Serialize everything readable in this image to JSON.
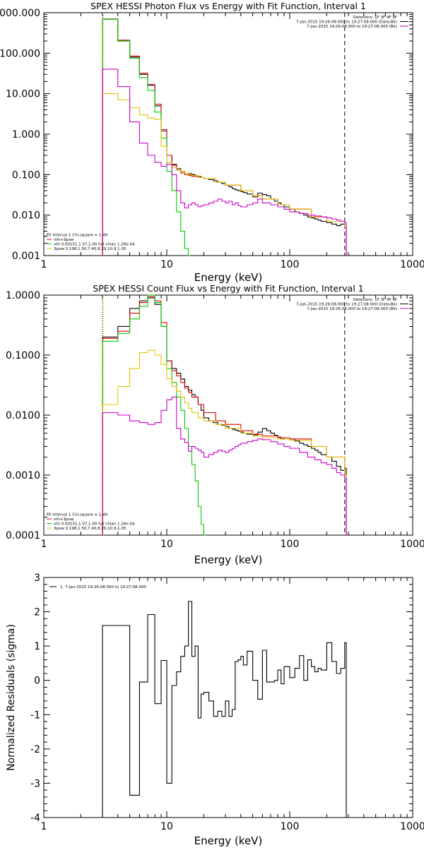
{
  "chart_data": [
    {
      "type": "line",
      "title": "SPEX HESSI Photon Flux vs Energy with Fit Function, Interval 1",
      "xlabel": "Energy (keV)",
      "ylabel": "",
      "xscale": "log",
      "yscale": "log",
      "xlim": [
        1,
        1000
      ],
      "ylim": [
        0.001,
        1000
      ],
      "xticks": [
        1,
        10,
        100,
        1000
      ],
      "xticklabels": [
        "1",
        "10",
        "100",
        "1000"
      ],
      "yticks": [
        0.001,
        0.01,
        0.1,
        1,
        10,
        100,
        1000
      ],
      "yticklabels": [
        "0.001",
        "0.010",
        "0.100",
        "1.000",
        "10.000",
        "100.000",
        "1000.000"
      ],
      "vlines": [
        {
          "x": 3,
          "style": "dotted",
          "color": "#000000"
        },
        {
          "x": 3,
          "style": "dotted",
          "color": "#e6c000"
        },
        {
          "x": 280,
          "style": "dashed",
          "color": "#000000"
        }
      ],
      "legend_top": {
        "position": "top-right",
        "lines": [
          {
            "text": "Detectors: 1F 3F 4F 9F",
            "color": "#000000"
          },
          {
            "text": "7-Jan-2015 19:26:08.000 to 19:27:08.000 (Data-Bk)",
            "color": "#000000"
          },
          {
            "text": "7-Jan-2015 19:26:08.000 to 19:27:08.000 (Bk)",
            "color": "#cc00cc"
          }
        ]
      },
      "legend_bottom": {
        "position": "bottom-left",
        "lines": [
          {
            "text": "Fit Interval 1    Chi-square = 1.49",
            "color": "#000000"
          },
          {
            "text": "vth+3pow",
            "color": "#dd0000"
          },
          {
            "text": "vth 0.00151,1.07,1.00  full chian 1.26e-04",
            "color": "#00cc00"
          },
          {
            "text": "3pow 0.198,1.50,7.40,8.29,10.9,1.05",
            "color": "#e6c000"
          }
        ]
      },
      "series": [
        {
          "color": "#000000",
          "x": [
            3,
            4,
            5,
            6,
            7,
            8,
            9,
            10,
            11,
            12,
            13,
            14,
            15,
            16,
            17,
            18,
            19,
            20,
            22,
            24,
            26,
            28,
            30,
            32,
            34,
            36,
            38,
            40,
            42,
            45,
            50,
            55,
            60,
            65,
            70,
            75,
            80,
            85,
            90,
            100,
            110,
            120,
            130,
            140,
            150,
            160,
            170,
            180,
            200,
            220,
            240,
            260,
            280
          ],
          "y": [
            700,
            200,
            80,
            30,
            16,
            5,
            1.2,
            0.3,
            0.18,
            0.14,
            0.12,
            0.11,
            0.105,
            0.1,
            0.095,
            0.09,
            0.085,
            0.08,
            0.075,
            0.07,
            0.065,
            0.06,
            0.055,
            0.05,
            0.045,
            0.042,
            0.04,
            0.038,
            0.036,
            0.033,
            0.028,
            0.035,
            0.032,
            0.03,
            0.025,
            0.022,
            0.02,
            0.018,
            0.016,
            0.014,
            0.012,
            0.011,
            0.01,
            0.009,
            0.0085,
            0.008,
            0.0075,
            0.007,
            0.0065,
            0.006,
            0.0055,
            0.006,
            0.005
          ]
        },
        {
          "color": "#dd0000",
          "x": [
            3,
            4,
            5,
            6,
            7,
            8,
            9,
            10,
            11,
            12,
            13,
            14,
            15,
            16,
            18,
            20,
            25,
            30,
            40,
            50,
            60,
            80,
            100,
            150,
            200,
            280
          ],
          "y": [
            690,
            210,
            85,
            32,
            17,
            5.5,
            1.3,
            0.3,
            0.17,
            0.13,
            0.11,
            0.1,
            0.095,
            0.09,
            0.085,
            0.08,
            0.065,
            0.055,
            0.04,
            0.03,
            0.025,
            0.018,
            0.014,
            0.009,
            0.007,
            0.005
          ]
        },
        {
          "color": "#00cc00",
          "x": [
            3,
            4,
            5,
            6,
            7,
            8,
            9,
            10,
            11,
            12,
            13,
            14,
            15
          ],
          "y": [
            690,
            200,
            75,
            25,
            12,
            3.5,
            0.8,
            0.12,
            0.04,
            0.012,
            0.004,
            0.0015,
            0.0005
          ]
        },
        {
          "color": "#e6c000",
          "x": [
            3,
            4,
            5,
            6,
            7,
            8,
            9,
            10,
            11,
            12,
            13,
            14,
            15,
            16,
            18,
            20,
            25,
            30,
            40,
            50,
            60,
            80,
            100,
            150,
            200,
            280
          ],
          "y": [
            10,
            7,
            4.5,
            3,
            2.5,
            2.3,
            0.5,
            0.2,
            0.15,
            0.13,
            0.12,
            0.11,
            0.1,
            0.095,
            0.085,
            0.08,
            0.065,
            0.055,
            0.04,
            0.03,
            0.025,
            0.018,
            0.014,
            0.009,
            0.007,
            0.005
          ]
        },
        {
          "color": "#cc00cc",
          "x": [
            3,
            4,
            5,
            6,
            7,
            8,
            9,
            10,
            11,
            12,
            13,
            14,
            15,
            16,
            17,
            18,
            19,
            20,
            22,
            24,
            26,
            28,
            30,
            32,
            34,
            36,
            38,
            40,
            45,
            50,
            55,
            60,
            70,
            80,
            90,
            100,
            120,
            140,
            160,
            180,
            200,
            220,
            240,
            260,
            280
          ],
          "y": [
            40,
            15,
            2,
            0.6,
            0.3,
            0.2,
            0.16,
            0.18,
            0.1,
            0.04,
            0.02,
            0.015,
            0.018,
            0.02,
            0.018,
            0.016,
            0.017,
            0.018,
            0.02,
            0.022,
            0.025,
            0.022,
            0.02,
            0.022,
            0.018,
            0.02,
            0.017,
            0.016,
            0.018,
            0.02,
            0.025,
            0.02,
            0.018,
            0.016,
            0.014,
            0.012,
            0.011,
            0.01,
            0.0095,
            0.009,
            0.0085,
            0.008,
            0.0075,
            0.007,
            0.0065
          ]
        }
      ]
    },
    {
      "type": "line",
      "title": "SPEX HESSI Count Flux vs Energy with Fit Function, Interval 1",
      "xlabel": "Energy (keV)",
      "ylabel": "",
      "xscale": "log",
      "yscale": "log",
      "xlim": [
        1,
        1000
      ],
      "ylim": [
        0.0001,
        1
      ],
      "xticks": [
        1,
        10,
        100,
        1000
      ],
      "xticklabels": [
        "1",
        "10",
        "100",
        "1000"
      ],
      "yticks": [
        0.0001,
        0.001,
        0.01,
        0.1,
        1
      ],
      "yticklabels": [
        "0.0001",
        "0.0010",
        "0.0100",
        "0.1000",
        "1.0000"
      ],
      "vlines": [
        {
          "x": 3,
          "style": "dotted",
          "color": "#000000"
        },
        {
          "x": 3,
          "style": "dotted",
          "color": "#e6c000"
        },
        {
          "x": 280,
          "style": "dashed",
          "color": "#000000"
        }
      ],
      "legend_top": {
        "position": "top-right",
        "lines": [
          {
            "text": "Detectors: 1F 3F 4F 9F",
            "color": "#000000"
          },
          {
            "text": "7-Jan-2015 19:26:08.000 to 19:27:08.000 (Data-Bk)",
            "color": "#000000"
          },
          {
            "text": "7-Jan-2015 19:26:08.000 to 19:27:08.000 (Bk)",
            "color": "#cc00cc"
          }
        ]
      },
      "legend_bottom": {
        "position": "bottom-left",
        "lines": [
          {
            "text": "Fit Interval 1    Chi-square = 1.49",
            "color": "#000000"
          },
          {
            "text": "vth+3pow",
            "color": "#dd0000"
          },
          {
            "text": "vth 0.00151,1.07,1.00  full chian 1.26e-04",
            "color": "#00cc00"
          },
          {
            "text": "3pow 0.198,1.50,7.40,8.29,10.9,1.05",
            "color": "#e6c000"
          }
        ]
      },
      "series": [
        {
          "color": "#000000",
          "x": [
            3,
            4,
            5,
            6,
            7,
            8,
            9,
            10,
            11,
            12,
            13,
            14,
            15,
            16,
            17,
            18,
            19,
            20,
            22,
            24,
            26,
            28,
            30,
            32,
            34,
            36,
            38,
            40,
            42,
            45,
            50,
            55,
            60,
            65,
            70,
            75,
            80,
            85,
            90,
            100,
            110,
            120,
            130,
            140,
            150,
            160,
            170,
            180,
            200,
            220,
            240,
            260,
            280
          ],
          "y": [
            0.2,
            0.3,
            0.6,
            0.8,
            0.9,
            0.7,
            0.3,
            0.08,
            0.06,
            0.05,
            0.04,
            0.03,
            0.026,
            0.022,
            0.02,
            0.015,
            0.012,
            0.009,
            0.008,
            0.0075,
            0.007,
            0.0068,
            0.0065,
            0.006,
            0.0058,
            0.0056,
            0.0054,
            0.0052,
            0.005,
            0.0048,
            0.0047,
            0.0052,
            0.006,
            0.0055,
            0.005,
            0.0046,
            0.0043,
            0.004,
            0.0042,
            0.004,
            0.0037,
            0.0034,
            0.0032,
            0.003,
            0.0028,
            0.0026,
            0.0024,
            0.0022,
            0.002,
            0.0017,
            0.0014,
            0.0012,
            0.0013
          ]
        },
        {
          "color": "#dd0000",
          "x": [
            3,
            4,
            5,
            6,
            7,
            8,
            9,
            10,
            11,
            12,
            13,
            14,
            15,
            16,
            18,
            20,
            25,
            30,
            40,
            50,
            60,
            80,
            100,
            150,
            200,
            280
          ],
          "y": [
            0.19,
            0.25,
            0.5,
            0.75,
            0.95,
            0.8,
            0.35,
            0.08,
            0.055,
            0.045,
            0.035,
            0.028,
            0.024,
            0.02,
            0.015,
            0.011,
            0.008,
            0.007,
            0.0055,
            0.0048,
            0.0045,
            0.0042,
            0.004,
            0.003,
            0.002,
            0.001
          ]
        },
        {
          "color": "#00cc00",
          "x": [
            3,
            4,
            5,
            6,
            7,
            8,
            9,
            10,
            11,
            12,
            13,
            14,
            15,
            16,
            17,
            18,
            19,
            20
          ],
          "y": [
            0.17,
            0.23,
            0.4,
            0.65,
            1.0,
            0.75,
            0.3,
            0.06,
            0.035,
            0.02,
            0.012,
            0.006,
            0.003,
            0.0015,
            0.0008,
            0.0003,
            0.00015,
            0.0001
          ]
        },
        {
          "color": "#e6c000",
          "x": [
            3,
            4,
            5,
            6,
            7,
            8,
            9,
            10,
            11,
            12,
            13,
            14,
            15,
            16,
            18,
            20,
            25,
            30,
            40,
            50,
            60,
            80,
            100,
            150,
            200,
            280
          ],
          "y": [
            0.015,
            0.03,
            0.06,
            0.11,
            0.12,
            0.1,
            0.07,
            0.04,
            0.03,
            0.025,
            0.02,
            0.016,
            0.013,
            0.011,
            0.009,
            0.008,
            0.007,
            0.006,
            0.005,
            0.0045,
            0.0042,
            0.004,
            0.0038,
            0.003,
            0.002,
            0.001
          ]
        },
        {
          "color": "#cc00cc",
          "x": [
            3,
            4,
            5,
            6,
            7,
            8,
            9,
            10,
            11,
            12,
            13,
            14,
            15,
            16,
            17,
            18,
            19,
            20,
            22,
            24,
            26,
            28,
            30,
            32,
            34,
            36,
            38,
            40,
            45,
            50,
            55,
            60,
            70,
            80,
            90,
            100,
            120,
            140,
            160,
            180,
            200,
            220,
            240,
            260,
            280
          ],
          "y": [
            0.011,
            0.01,
            0.008,
            0.0075,
            0.007,
            0.0075,
            0.012,
            0.018,
            0.02,
            0.006,
            0.004,
            0.0035,
            0.0025,
            0.003,
            0.0028,
            0.0026,
            0.0024,
            0.002,
            0.0022,
            0.0024,
            0.0026,
            0.0025,
            0.0024,
            0.0026,
            0.0028,
            0.003,
            0.0032,
            0.0034,
            0.0036,
            0.0038,
            0.004,
            0.0039,
            0.0036,
            0.0033,
            0.003,
            0.0028,
            0.0024,
            0.002,
            0.0018,
            0.0016,
            0.0015,
            0.0013,
            0.0011,
            0.001,
            0.0009
          ]
        }
      ]
    },
    {
      "type": "line",
      "title": "",
      "xlabel": "Energy (keV)",
      "ylabel": "Normalized Residuals (sigma)",
      "xscale": "log",
      "yscale": "linear",
      "xlim": [
        1,
        1000
      ],
      "ylim": [
        -4,
        3
      ],
      "xticks": [
        1,
        10,
        100,
        1000
      ],
      "xticklabels": [
        "1",
        "10",
        "100",
        "1000"
      ],
      "yticks": [
        -4,
        -3,
        -2,
        -1,
        0,
        1,
        2,
        3
      ],
      "yticklabels": [
        "-4",
        "-3",
        "-2",
        "-1",
        "0",
        "1",
        "2",
        "3"
      ],
      "legend_top": {
        "position": "top-left",
        "lines": [
          {
            "text": "1.  7-Jan-2015 19:26:08.000 to 19:27:08.000",
            "color": "#000000"
          }
        ]
      },
      "series": [
        {
          "color": "#000000",
          "x": [
            3,
            4,
            5,
            6,
            7,
            8,
            9,
            10,
            11,
            12,
            13,
            14,
            15,
            16,
            17,
            18,
            19,
            20,
            22,
            24,
            26,
            28,
            30,
            32,
            34,
            36,
            38,
            40,
            42,
            45,
            50,
            55,
            60,
            65,
            70,
            75,
            80,
            85,
            90,
            100,
            110,
            120,
            130,
            140,
            150,
            160,
            170,
            180,
            200,
            220,
            240,
            260,
            280
          ],
          "y": [
            1.6,
            1.6,
            -3.35,
            -0.05,
            1.92,
            -0.68,
            0.58,
            -3.0,
            -0.15,
            0.25,
            0.7,
            1.0,
            2.3,
            0.7,
            1.0,
            -1.1,
            -0.4,
            -0.35,
            -0.6,
            -1.05,
            -0.9,
            -1.05,
            -0.6,
            -1.05,
            -0.85,
            0.55,
            0.6,
            0.7,
            0.45,
            0.85,
            0.0,
            -0.55,
            0.88,
            -0.05,
            -0.05,
            0.0,
            0.3,
            -0.1,
            0.4,
            0.08,
            0.35,
            0.72,
            0.0,
            0.6,
            0.4,
            0.25,
            0.35,
            0.3,
            1.1,
            0.55,
            0.2,
            0.35,
            1.1
          ]
        }
      ]
    }
  ]
}
